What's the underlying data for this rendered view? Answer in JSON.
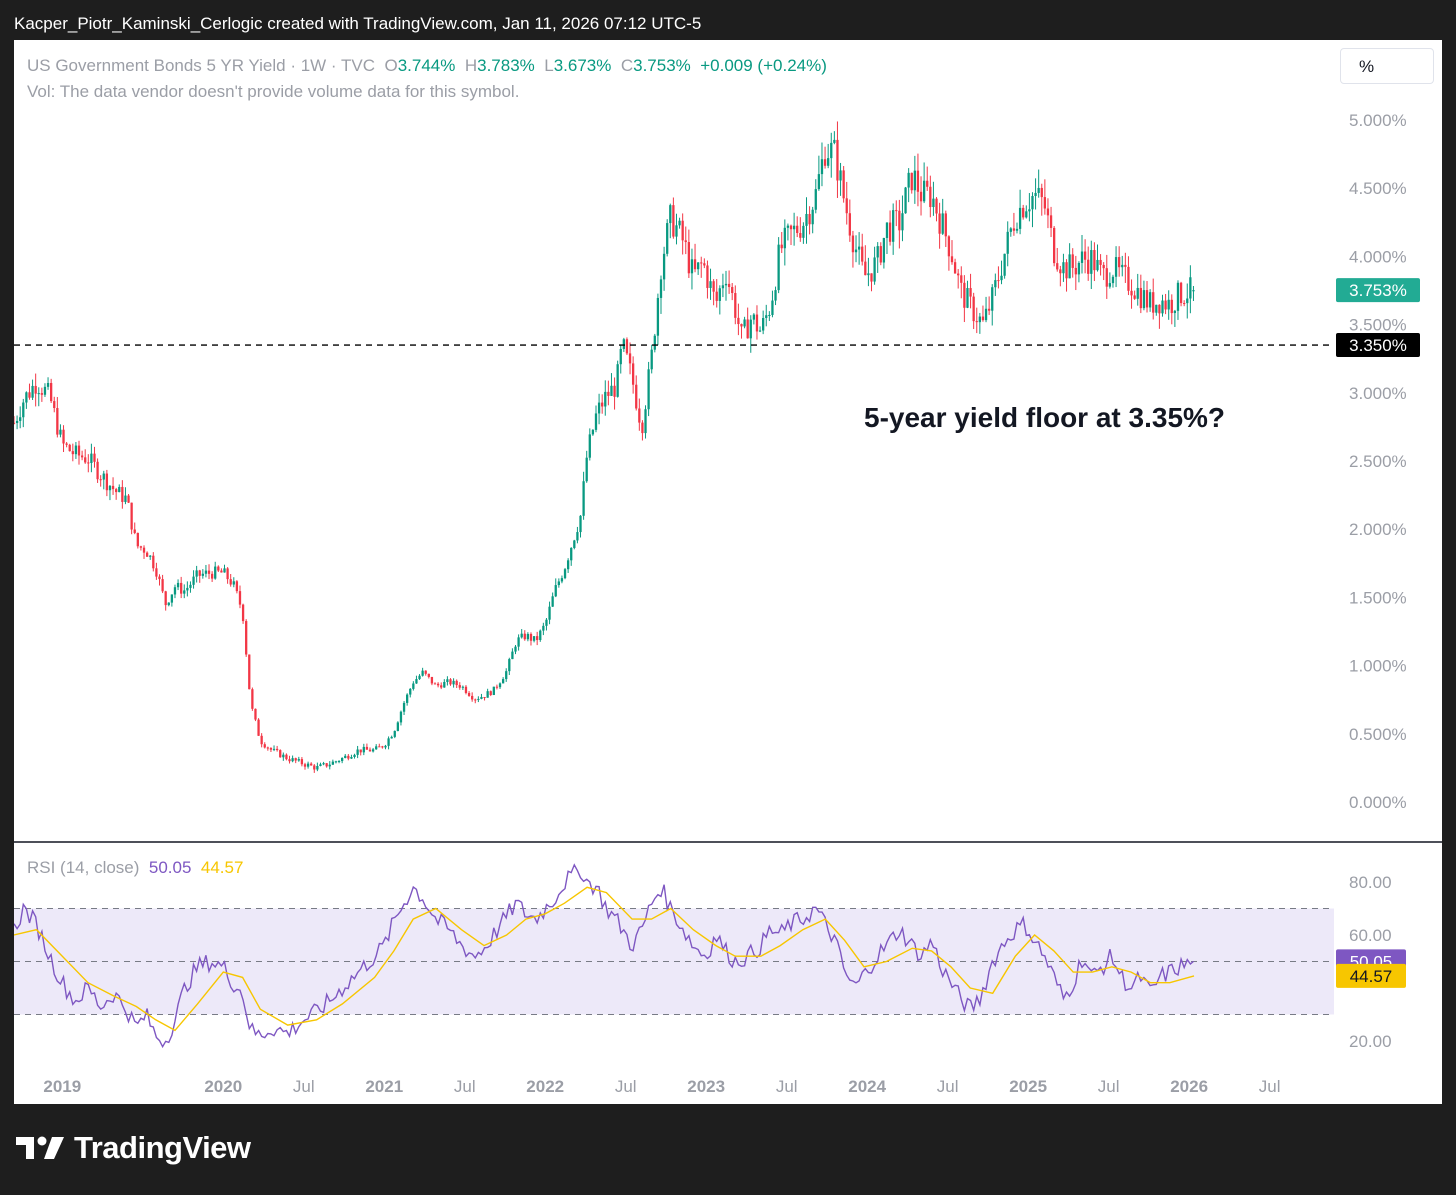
{
  "top_caption": "Kacper_Piotr_Kaminski_Cerlogic created with TradingView.com, Jan 11, 2026 07:12 UTC-5",
  "header": {
    "symbol": "US Government Bonds 5 YR Yield · 1W · TVC",
    "o_label": "O",
    "o_value": "3.744%",
    "h_label": "H",
    "h_value": "3.783%",
    "l_label": "L",
    "l_value": "3.673%",
    "c_label": "C",
    "c_value": "3.753%",
    "change": "+0.009 (+0.24%)",
    "vol_note": "Vol: The data vendor doesn't provide volume data for this symbol."
  },
  "percent_button": "%",
  "annotation": "5-year yield floor at 3.35%?",
  "rsi_header": {
    "label": "RSI (14, close)",
    "rsi_value": "50.05",
    "ma_value": "44.57"
  },
  "footer_logo": "TradingView",
  "colors": {
    "up": "#089981",
    "down": "#f23645",
    "rsi": "#7e57c2",
    "rsi_ma": "#f7c600",
    "band": "#ede9f9",
    "last_price": "#22ab94",
    "level": "#000000"
  },
  "chart_data": [
    {
      "type": "candlestick",
      "x_unit": "year (decimal)",
      "ylim": [
        0,
        5.0
      ],
      "y_ticks": [
        "5.000%",
        "4.500%",
        "4.000%",
        "3.500%",
        "3.000%",
        "2.500%",
        "2.000%",
        "1.500%",
        "1.000%",
        "0.500%",
        "0.000%"
      ],
      "y_tick_values": [
        5,
        4.5,
        4,
        3.5,
        3,
        2.5,
        2,
        1.5,
        1,
        0.5,
        0
      ],
      "x_ticks": [
        "2019",
        "2020",
        "Jul",
        "2021",
        "Jul",
        "2022",
        "Jul",
        "2023",
        "Jul",
        "2024",
        "Jul",
        "2025",
        "Jul",
        "2026",
        "Jul"
      ],
      "x_tick_values": [
        2019.0,
        2020.0,
        2020.5,
        2021.0,
        2021.5,
        2022.0,
        2022.5,
        2023.0,
        2023.5,
        2024.0,
        2024.5,
        2025.0,
        2025.5,
        2026.0,
        2026.5
      ],
      "last_price": {
        "value": 3.753,
        "label": "3.753%"
      },
      "horizontal_level": {
        "value": 3.35,
        "label": "3.350%",
        "style": "dashed"
      },
      "path_points": [
        [
          2018.7,
          2.78
        ],
        [
          2018.76,
          2.95
        ],
        [
          2018.84,
          3.08
        ],
        [
          2018.92,
          2.98
        ],
        [
          2019.0,
          2.62
        ],
        [
          2019.08,
          2.55
        ],
        [
          2019.16,
          2.52
        ],
        [
          2019.24,
          2.4
        ],
        [
          2019.33,
          2.28
        ],
        [
          2019.4,
          2.22
        ],
        [
          2019.46,
          1.88
        ],
        [
          2019.52,
          1.85
        ],
        [
          2019.58,
          1.72
        ],
        [
          2019.64,
          1.45
        ],
        [
          2019.7,
          1.58
        ],
        [
          2019.76,
          1.55
        ],
        [
          2019.84,
          1.66
        ],
        [
          2019.92,
          1.68
        ],
        [
          2020.0,
          1.68
        ],
        [
          2020.06,
          1.6
        ],
        [
          2020.12,
          1.4
        ],
        [
          2020.17,
          0.72
        ],
        [
          2020.23,
          0.45
        ],
        [
          2020.3,
          0.38
        ],
        [
          2020.4,
          0.32
        ],
        [
          2020.5,
          0.28
        ],
        [
          2020.58,
          0.25
        ],
        [
          2020.66,
          0.28
        ],
        [
          2020.74,
          0.32
        ],
        [
          2020.84,
          0.38
        ],
        [
          2020.94,
          0.38
        ],
        [
          2021.0,
          0.42
        ],
        [
          2021.06,
          0.52
        ],
        [
          2021.12,
          0.72
        ],
        [
          2021.18,
          0.88
        ],
        [
          2021.24,
          0.95
        ],
        [
          2021.32,
          0.85
        ],
        [
          2021.4,
          0.88
        ],
        [
          2021.48,
          0.85
        ],
        [
          2021.56,
          0.76
        ],
        [
          2021.62,
          0.78
        ],
        [
          2021.68,
          0.82
        ],
        [
          2021.76,
          0.96
        ],
        [
          2021.82,
          1.18
        ],
        [
          2021.88,
          1.22
        ],
        [
          2021.94,
          1.18
        ],
        [
          2022.0,
          1.3
        ],
        [
          2022.06,
          1.55
        ],
        [
          2022.12,
          1.72
        ],
        [
          2022.18,
          1.95
        ],
        [
          2022.22,
          2.1
        ],
        [
          2022.26,
          2.55
        ],
        [
          2022.32,
          2.85
        ],
        [
          2022.38,
          2.98
        ],
        [
          2022.44,
          3.05
        ],
        [
          2022.48,
          3.35
        ],
        [
          2022.54,
          3.1
        ],
        [
          2022.6,
          2.75
        ],
        [
          2022.66,
          3.25
        ],
        [
          2022.72,
          3.95
        ],
        [
          2022.78,
          4.28
        ],
        [
          2022.82,
          4.2
        ],
        [
          2022.86,
          4.1
        ],
        [
          2022.92,
          3.85
        ],
        [
          2022.98,
          3.95
        ],
        [
          2023.06,
          3.65
        ],
        [
          2023.12,
          3.9
        ],
        [
          2023.18,
          3.62
        ],
        [
          2023.22,
          3.4
        ],
        [
          2023.28,
          3.55
        ],
        [
          2023.34,
          3.45
        ],
        [
          2023.4,
          3.65
        ],
        [
          2023.46,
          4.05
        ],
        [
          2023.52,
          4.15
        ],
        [
          2023.6,
          4.25
        ],
        [
          2023.68,
          4.45
        ],
        [
          2023.74,
          4.8
        ],
        [
          2023.8,
          4.75
        ],
        [
          2023.86,
          4.4
        ],
        [
          2023.92,
          4.1
        ],
        [
          2023.98,
          3.85
        ],
        [
          2024.06,
          3.95
        ],
        [
          2024.12,
          4.2
        ],
        [
          2024.2,
          4.25
        ],
        [
          2024.28,
          4.6
        ],
        [
          2024.34,
          4.45
        ],
        [
          2024.4,
          4.45
        ],
        [
          2024.46,
          4.25
        ],
        [
          2024.52,
          4.05
        ],
        [
          2024.58,
          3.75
        ],
        [
          2024.66,
          3.6
        ],
        [
          2024.72,
          3.5
        ],
        [
          2024.78,
          3.7
        ],
        [
          2024.86,
          4.05
        ],
        [
          2024.92,
          4.3
        ],
        [
          2024.98,
          4.4
        ],
        [
          2025.04,
          4.45
        ],
        [
          2025.1,
          4.38
        ],
        [
          2025.16,
          4.05
        ],
        [
          2025.22,
          3.92
        ],
        [
          2025.28,
          3.92
        ],
        [
          2025.34,
          3.98
        ],
        [
          2025.4,
          3.98
        ],
        [
          2025.46,
          3.85
        ],
        [
          2025.52,
          3.92
        ],
        [
          2025.58,
          3.85
        ],
        [
          2025.64,
          3.8
        ],
        [
          2025.7,
          3.72
        ],
        [
          2025.76,
          3.65
        ],
        [
          2025.82,
          3.68
        ],
        [
          2025.88,
          3.65
        ],
        [
          2025.94,
          3.72
        ],
        [
          2026.03,
          3.753
        ]
      ]
    },
    {
      "type": "line",
      "name": "RSI (14, close)",
      "ylim": [
        10,
        90
      ],
      "y_ticks": [
        "80.00",
        "60.00",
        "20.00"
      ],
      "y_tick_values": [
        80,
        60,
        20
      ],
      "band": [
        30,
        70
      ],
      "midline": 50,
      "last_values": {
        "rsi": "50.05",
        "ma": "44.57"
      },
      "rsi_points": [
        [
          2018.7,
          62
        ],
        [
          2018.76,
          70
        ],
        [
          2018.84,
          64
        ],
        [
          2018.92,
          52
        ],
        [
          2019.0,
          42
        ],
        [
          2019.08,
          35
        ],
        [
          2019.16,
          40
        ],
        [
          2019.24,
          33
        ],
        [
          2019.32,
          38
        ],
        [
          2019.4,
          32
        ],
        [
          2019.46,
          25
        ],
        [
          2019.52,
          30
        ],
        [
          2019.58,
          22
        ],
        [
          2019.64,
          20
        ],
        [
          2019.7,
          28
        ],
        [
          2019.76,
          40
        ],
        [
          2019.84,
          48
        ],
        [
          2019.92,
          50
        ],
        [
          2020.0,
          48
        ],
        [
          2020.06,
          42
        ],
        [
          2020.12,
          38
        ],
        [
          2020.17,
          24
        ],
        [
          2020.23,
          22
        ],
        [
          2020.3,
          25
        ],
        [
          2020.4,
          23
        ],
        [
          2020.5,
          28
        ],
        [
          2020.58,
          31
        ],
        [
          2020.66,
          35
        ],
        [
          2020.74,
          40
        ],
        [
          2020.84,
          46
        ],
        [
          2020.94,
          52
        ],
        [
          2021.0,
          56
        ],
        [
          2021.06,
          65
        ],
        [
          2021.12,
          72
        ],
        [
          2021.18,
          78
        ],
        [
          2021.24,
          74
        ],
        [
          2021.32,
          66
        ],
        [
          2021.4,
          62
        ],
        [
          2021.48,
          56
        ],
        [
          2021.56,
          52
        ],
        [
          2021.62,
          55
        ],
        [
          2021.68,
          60
        ],
        [
          2021.76,
          67
        ],
        [
          2021.82,
          72
        ],
        [
          2021.88,
          68
        ],
        [
          2021.94,
          66
        ],
        [
          2022.0,
          70
        ],
        [
          2022.06,
          74
        ],
        [
          2022.12,
          80
        ],
        [
          2022.18,
          83
        ],
        [
          2022.22,
          85
        ],
        [
          2022.26,
          80
        ],
        [
          2022.32,
          78
        ],
        [
          2022.38,
          70
        ],
        [
          2022.44,
          66
        ],
        [
          2022.48,
          62
        ],
        [
          2022.54,
          56
        ],
        [
          2022.6,
          62
        ],
        [
          2022.66,
          72
        ],
        [
          2022.72,
          78
        ],
        [
          2022.78,
          70
        ],
        [
          2022.86,
          62
        ],
        [
          2022.92,
          56
        ],
        [
          2023.0,
          52
        ],
        [
          2023.06,
          60
        ],
        [
          2023.12,
          54
        ],
        [
          2023.18,
          50
        ],
        [
          2023.26,
          52
        ],
        [
          2023.34,
          56
        ],
        [
          2023.4,
          62
        ],
        [
          2023.46,
          60
        ],
        [
          2023.52,
          64
        ],
        [
          2023.6,
          66
        ],
        [
          2023.68,
          70
        ],
        [
          2023.74,
          64
        ],
        [
          2023.8,
          58
        ],
        [
          2023.86,
          46
        ],
        [
          2023.92,
          40
        ],
        [
          2023.98,
          45
        ],
        [
          2024.06,
          52
        ],
        [
          2024.12,
          56
        ],
        [
          2024.2,
          62
        ],
        [
          2024.28,
          56
        ],
        [
          2024.34,
          52
        ],
        [
          2024.4,
          58
        ],
        [
          2024.46,
          48
        ],
        [
          2024.52,
          42
        ],
        [
          2024.58,
          36
        ],
        [
          2024.64,
          32
        ],
        [
          2024.7,
          36
        ],
        [
          2024.78,
          50
        ],
        [
          2024.86,
          58
        ],
        [
          2024.92,
          62
        ],
        [
          2024.98,
          64
        ],
        [
          2025.04,
          58
        ],
        [
          2025.1,
          52
        ],
        [
          2025.16,
          44
        ],
        [
          2025.22,
          36
        ],
        [
          2025.28,
          42
        ],
        [
          2025.34,
          52
        ],
        [
          2025.4,
          44
        ],
        [
          2025.46,
          48
        ],
        [
          2025.52,
          52
        ],
        [
          2025.58,
          44
        ],
        [
          2025.64,
          40
        ],
        [
          2025.7,
          44
        ],
        [
          2025.76,
          38
        ],
        [
          2025.82,
          44
        ],
        [
          2025.88,
          46
        ],
        [
          2025.94,
          48
        ],
        [
          2026.03,
          50.05
        ]
      ],
      "ma_points": [
        [
          2018.7,
          60
        ],
        [
          2018.84,
          62
        ],
        [
          2019.0,
          52
        ],
        [
          2019.16,
          42
        ],
        [
          2019.32,
          37
        ],
        [
          2019.46,
          33
        ],
        [
          2019.58,
          28
        ],
        [
          2019.7,
          24
        ],
        [
          2019.84,
          34
        ],
        [
          2020.0,
          46
        ],
        [
          2020.12,
          44
        ],
        [
          2020.23,
          32
        ],
        [
          2020.4,
          26
        ],
        [
          2020.58,
          28
        ],
        [
          2020.74,
          34
        ],
        [
          2020.94,
          44
        ],
        [
          2021.06,
          54
        ],
        [
          2021.18,
          66
        ],
        [
          2021.32,
          70
        ],
        [
          2021.48,
          62
        ],
        [
          2021.62,
          56
        ],
        [
          2021.76,
          60
        ],
        [
          2021.88,
          66
        ],
        [
          2022.0,
          68
        ],
        [
          2022.12,
          72
        ],
        [
          2022.26,
          78
        ],
        [
          2022.38,
          76
        ],
        [
          2022.54,
          66
        ],
        [
          2022.66,
          66
        ],
        [
          2022.78,
          70
        ],
        [
          2022.92,
          62
        ],
        [
          2023.06,
          56
        ],
        [
          2023.18,
          52
        ],
        [
          2023.34,
          52
        ],
        [
          2023.46,
          56
        ],
        [
          2023.6,
          62
        ],
        [
          2023.74,
          66
        ],
        [
          2023.86,
          58
        ],
        [
          2023.98,
          48
        ],
        [
          2024.12,
          50
        ],
        [
          2024.28,
          55
        ],
        [
          2024.4,
          54
        ],
        [
          2024.52,
          48
        ],
        [
          2024.64,
          40
        ],
        [
          2024.78,
          38
        ],
        [
          2024.92,
          52
        ],
        [
          2025.04,
          60
        ],
        [
          2025.16,
          54
        ],
        [
          2025.28,
          46
        ],
        [
          2025.4,
          46
        ],
        [
          2025.52,
          48
        ],
        [
          2025.64,
          46
        ],
        [
          2025.76,
          42
        ],
        [
          2025.88,
          42
        ],
        [
          2026.03,
          44.57
        ]
      ]
    }
  ]
}
